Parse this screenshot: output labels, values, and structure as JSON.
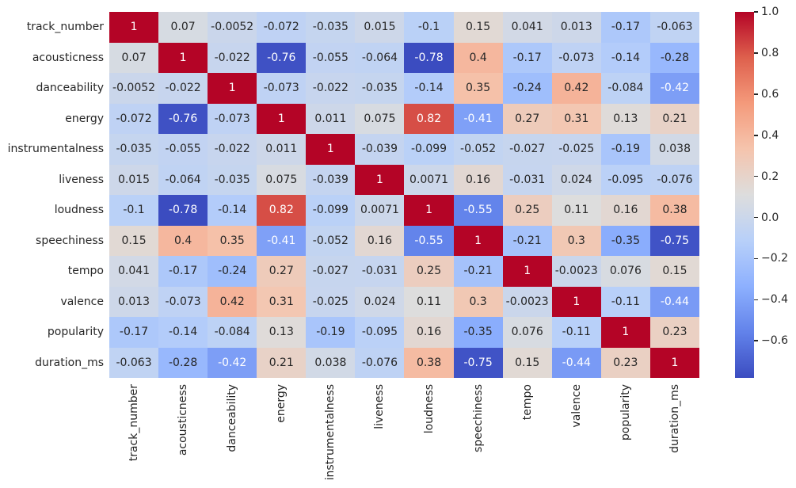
{
  "figure": {
    "background": "#ffffff",
    "text_color_dark": "#262626",
    "text_color_light": "#ffffff"
  },
  "chart_data": {
    "type": "heatmap",
    "title": "",
    "xlabel": "",
    "ylabel": "",
    "labels": [
      "track_number",
      "acousticness",
      "danceability",
      "energy",
      "instrumentalness",
      "liveness",
      "loudness",
      "speechiness",
      "tempo",
      "valence",
      "popularity",
      "duration_ms"
    ],
    "matrix": [
      [
        "1",
        "0.07",
        "-0.0052",
        "-0.072",
        "-0.035",
        "0.015",
        "-0.1",
        "0.15",
        "0.041",
        "0.013",
        "-0.17",
        "-0.063"
      ],
      [
        "0.07",
        "1",
        "-0.022",
        "-0.76",
        "-0.055",
        "-0.064",
        "-0.78",
        "0.4",
        "-0.17",
        "-0.073",
        "-0.14",
        "-0.28"
      ],
      [
        "-0.0052",
        "-0.022",
        "1",
        "-0.073",
        "-0.022",
        "-0.035",
        "-0.14",
        "0.35",
        "-0.24",
        "0.42",
        "-0.084",
        "-0.42"
      ],
      [
        "-0.072",
        "-0.76",
        "-0.073",
        "1",
        "0.011",
        "0.075",
        "0.82",
        "-0.41",
        "0.27",
        "0.31",
        "0.13",
        "0.21"
      ],
      [
        "-0.035",
        "-0.055",
        "-0.022",
        "0.011",
        "1",
        "-0.039",
        "-0.099",
        "-0.052",
        "-0.027",
        "-0.025",
        "-0.19",
        "0.038"
      ],
      [
        "0.015",
        "-0.064",
        "-0.035",
        "0.075",
        "-0.039",
        "1",
        "0.0071",
        "0.16",
        "-0.031",
        "0.024",
        "-0.095",
        "-0.076"
      ],
      [
        "-0.1",
        "-0.78",
        "-0.14",
        "0.82",
        "-0.099",
        "0.0071",
        "1",
        "-0.55",
        "0.25",
        "0.11",
        "0.16",
        "0.38"
      ],
      [
        "0.15",
        "0.4",
        "0.35",
        "-0.41",
        "-0.052",
        "0.16",
        "-0.55",
        "1",
        "-0.21",
        "0.3",
        "-0.35",
        "-0.75"
      ],
      [
        "0.041",
        "-0.17",
        "-0.24",
        "0.27",
        "-0.027",
        "-0.031",
        "0.25",
        "-0.21",
        "1",
        "-0.0023",
        "0.076",
        "0.15"
      ],
      [
        "0.013",
        "-0.073",
        "0.42",
        "0.31",
        "-0.025",
        "0.024",
        "0.11",
        "0.3",
        "-0.0023",
        "1",
        "-0.11",
        "-0.44"
      ],
      [
        "-0.17",
        "-0.14",
        "-0.084",
        "0.13",
        "-0.19",
        "-0.095",
        "0.16",
        "-0.35",
        "0.076",
        "-0.11",
        "1",
        "0.23"
      ],
      [
        "-0.063",
        "-0.28",
        "-0.42",
        "0.21",
        "0.038",
        "-0.076",
        "0.38",
        "-0.75",
        "0.15",
        "-0.44",
        "0.23",
        "1"
      ]
    ],
    "vmin": -0.78,
    "vmax": 1.0,
    "colormap": "coolwarm",
    "colormap_anchors": [
      {
        "t": 0.0,
        "hex": "#3b4cc0"
      },
      {
        "t": 0.125,
        "hex": "#6282ea"
      },
      {
        "t": 0.25,
        "hex": "#8db0fe"
      },
      {
        "t": 0.375,
        "hex": "#b8d0f9"
      },
      {
        "t": 0.5,
        "hex": "#dddddd"
      },
      {
        "t": 0.625,
        "hex": "#f5c4ad"
      },
      {
        "t": 0.75,
        "hex": "#f49a7b"
      },
      {
        "t": 0.875,
        "hex": "#de604d"
      },
      {
        "t": 1.0,
        "hex": "#b40426"
      }
    ],
    "colorbar": {
      "position": "right",
      "tick_labels": [
        "1.0",
        "0.8",
        "0.6",
        "0.4",
        "0.2",
        "0.0",
        "−0.2",
        "−0.4",
        "−0.6"
      ],
      "tick_values": [
        1.0,
        0.8,
        0.6,
        0.4,
        0.2,
        0.0,
        -0.2,
        -0.4,
        -0.6
      ]
    },
    "grid": false,
    "legend": false,
    "annotations": true
  }
}
